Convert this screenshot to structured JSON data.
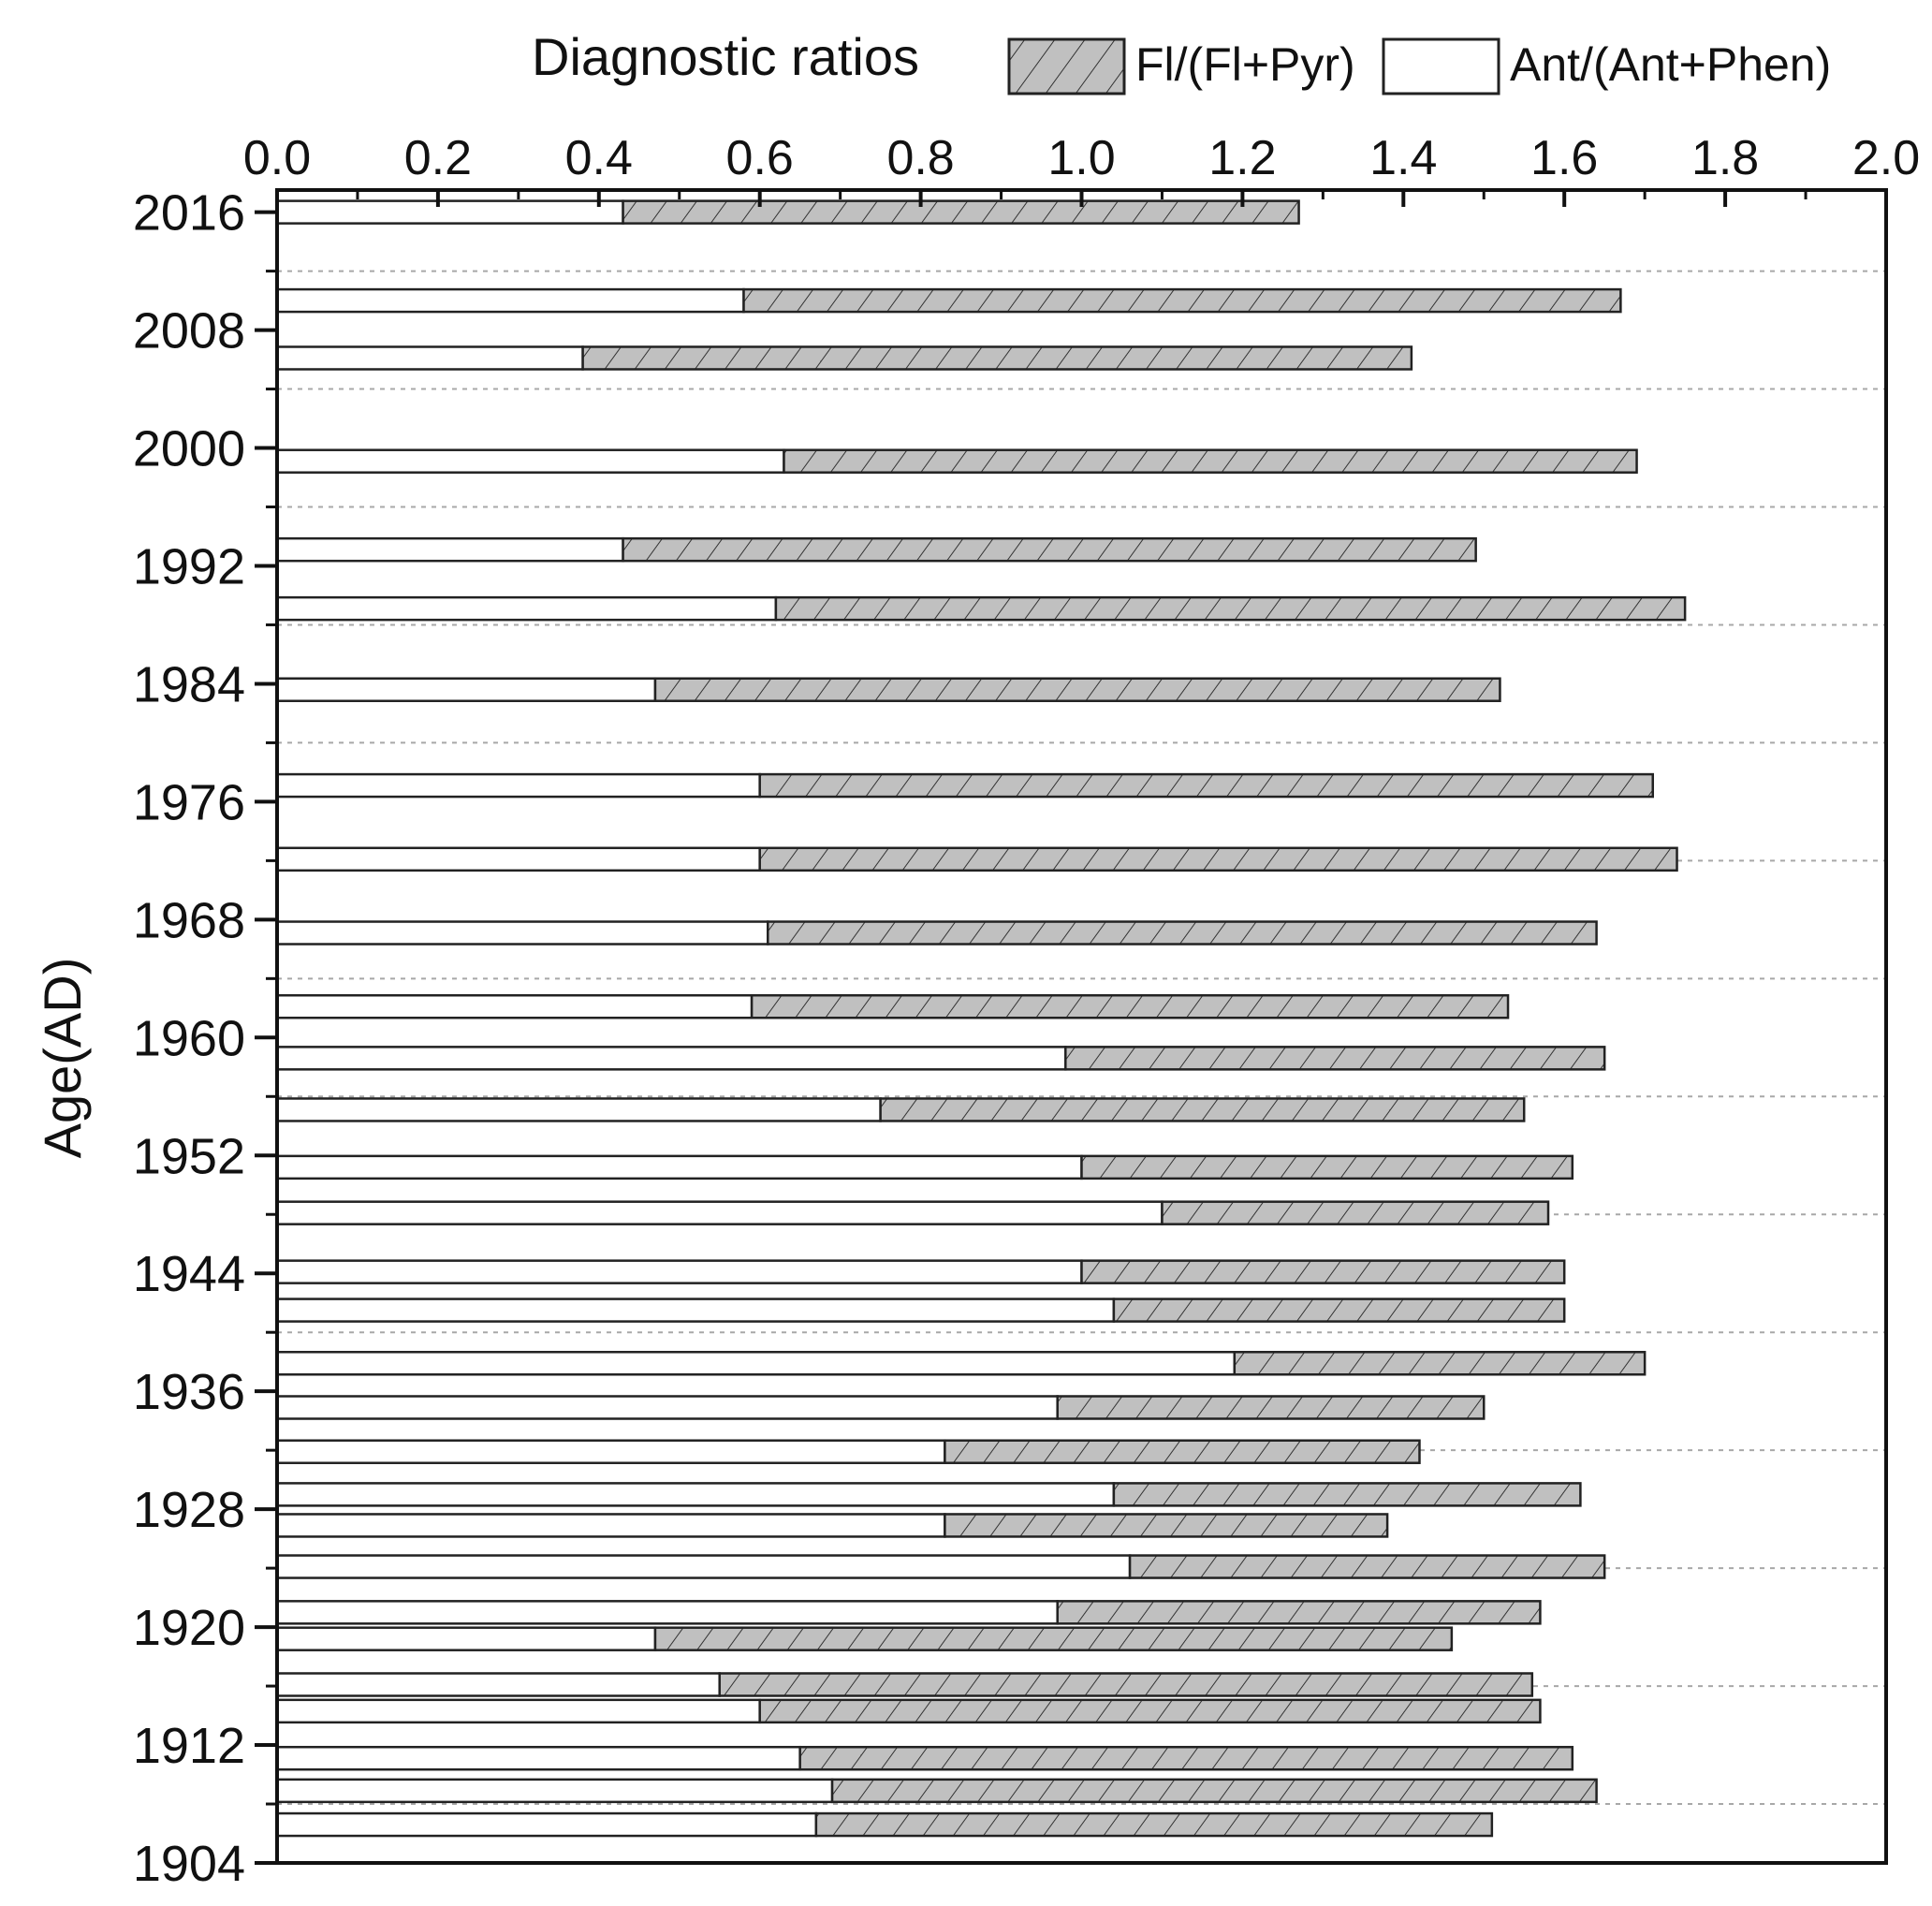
{
  "chart_data": {
    "type": "bar",
    "orientation": "horizontal",
    "stacked": true,
    "title": "Diagnostic ratios",
    "xlabel": "",
    "ylabel": "Age(AD)",
    "xlim": [
      0.0,
      2.0
    ],
    "ylim": [
      1904,
      2017.5
    ],
    "x_ticks": [
      "0.0",
      "0.2",
      "0.4",
      "0.6",
      "0.8",
      "1.0",
      "1.2",
      "1.4",
      "1.6",
      "1.8",
      "2.0"
    ],
    "y_ticks": [
      "2016",
      "2008",
      "2000",
      "1992",
      "1984",
      "1976",
      "1968",
      "1960",
      "1952",
      "1944",
      "1936",
      "1928",
      "1920",
      "1912",
      "1904"
    ],
    "x_axis_position": "top",
    "grid": "horizontal dotted",
    "legend_position": "top",
    "series": [
      {
        "name": "Fl/(Fl+Pyr)",
        "pattern": "hatched",
        "color": "#c0c0c0"
      },
      {
        "name": "Ant/(Ant+Phen)",
        "pattern": "plain",
        "color": "#ffffff"
      }
    ],
    "data": [
      {
        "age": 2016.0,
        "ant_phen": 0.43,
        "fl_pyr": 0.84
      },
      {
        "age": 2010.0,
        "ant_phen": 0.58,
        "fl_pyr": 1.09
      },
      {
        "age": 2006.1,
        "ant_phen": 0.38,
        "fl_pyr": 1.03
      },
      {
        "age": 1999.1,
        "ant_phen": 0.63,
        "fl_pyr": 1.06
      },
      {
        "age": 1993.1,
        "ant_phen": 0.43,
        "fl_pyr": 1.06
      },
      {
        "age": 1989.1,
        "ant_phen": 0.62,
        "fl_pyr": 1.13
      },
      {
        "age": 1983.6,
        "ant_phen": 0.47,
        "fl_pyr": 1.05
      },
      {
        "age": 1977.1,
        "ant_phen": 0.6,
        "fl_pyr": 1.11
      },
      {
        "age": 1972.1,
        "ant_phen": 0.6,
        "fl_pyr": 1.14
      },
      {
        "age": 1967.1,
        "ant_phen": 0.61,
        "fl_pyr": 1.03
      },
      {
        "age": 1962.1,
        "ant_phen": 0.59,
        "fl_pyr": 0.94
      },
      {
        "age": 1958.6,
        "ant_phen": 0.98,
        "fl_pyr": 0.67
      },
      {
        "age": 1955.1,
        "ant_phen": 0.75,
        "fl_pyr": 0.8
      },
      {
        "age": 1951.2,
        "ant_phen": 1.0,
        "fl_pyr": 0.61
      },
      {
        "age": 1948.1,
        "ant_phen": 1.1,
        "fl_pyr": 0.48
      },
      {
        "age": 1944.1,
        "ant_phen": 1.0,
        "fl_pyr": 0.6
      },
      {
        "age": 1941.5,
        "ant_phen": 1.04,
        "fl_pyr": 0.56
      },
      {
        "age": 1937.9,
        "ant_phen": 1.19,
        "fl_pyr": 0.51
      },
      {
        "age": 1934.9,
        "ant_phen": 0.97,
        "fl_pyr": 0.53
      },
      {
        "age": 1931.9,
        "ant_phen": 0.83,
        "fl_pyr": 0.59
      },
      {
        "age": 1929.0,
        "ant_phen": 1.04,
        "fl_pyr": 0.58
      },
      {
        "age": 1926.9,
        "ant_phen": 0.83,
        "fl_pyr": 0.55
      },
      {
        "age": 1924.1,
        "ant_phen": 1.06,
        "fl_pyr": 0.59
      },
      {
        "age": 1921.0,
        "ant_phen": 0.97,
        "fl_pyr": 0.6
      },
      {
        "age": 1919.2,
        "ant_phen": 0.47,
        "fl_pyr": 0.99
      },
      {
        "age": 1916.1,
        "ant_phen": 0.55,
        "fl_pyr": 1.01
      },
      {
        "age": 1914.3,
        "ant_phen": 0.6,
        "fl_pyr": 0.97
      },
      {
        "age": 1911.1,
        "ant_phen": 0.65,
        "fl_pyr": 0.96
      },
      {
        "age": 1908.9,
        "ant_phen": 0.69,
        "fl_pyr": 0.95
      },
      {
        "age": 1906.6,
        "ant_phen": 0.67,
        "fl_pyr": 0.84
      }
    ]
  }
}
